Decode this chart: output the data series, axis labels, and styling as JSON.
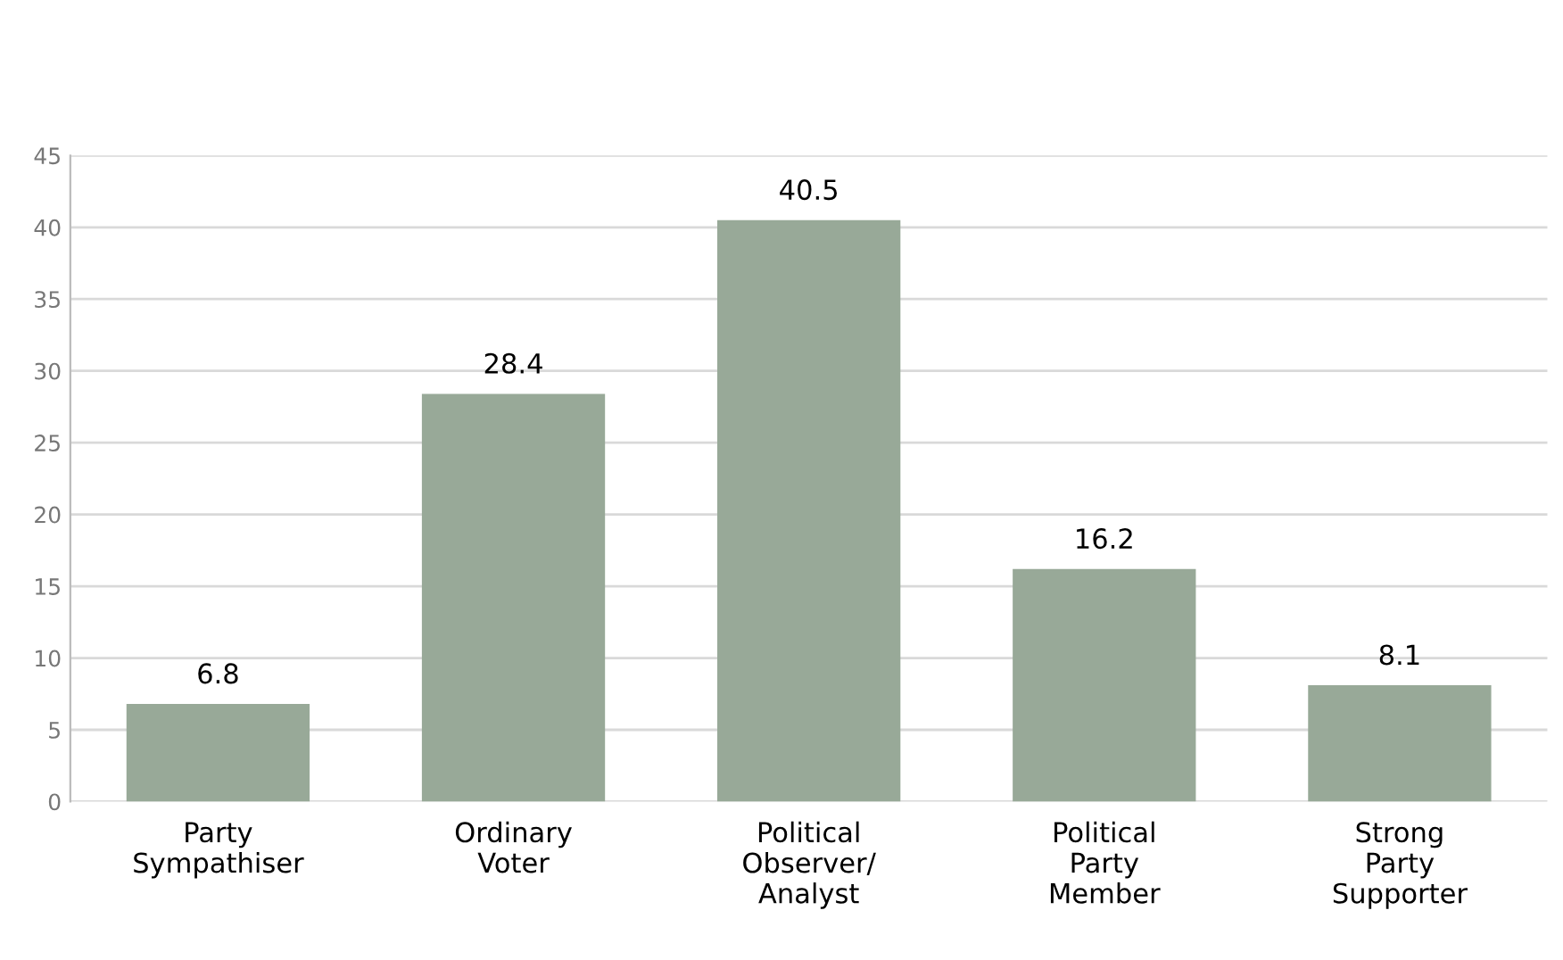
{
  "chart_data": {
    "type": "bar",
    "categories": [
      "Party\nSympathiser",
      "Ordinary\nVoter",
      "Political\nObserver/\nAnalyst",
      "Political\nParty\nMember",
      "Strong\nParty\nSupporter"
    ],
    "values": [
      6.8,
      28.4,
      40.5,
      16.2,
      8.1
    ],
    "color": "#98a998",
    "ylim": [
      0,
      45
    ],
    "yticks": [
      0,
      5,
      10,
      15,
      20,
      25,
      30,
      35,
      40,
      45
    ],
    "grid": "y",
    "data_labels": true
  }
}
